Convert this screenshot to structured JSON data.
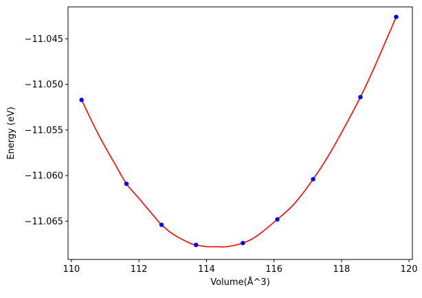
{
  "chart_data": {
    "type": "scatter",
    "xlabel": "Volume(Å^3)",
    "ylabel": "Energy (eV)",
    "xlim": [
      109.9,
      120.1
    ],
    "ylim": [
      -11.0692,
      -11.0415
    ],
    "x_ticks": [
      110,
      112,
      114,
      116,
      118,
      120
    ],
    "x_tick_labels": [
      "110",
      "112",
      "114",
      "116",
      "118",
      "120"
    ],
    "y_ticks": [
      -11.065,
      -11.06,
      -11.055,
      -11.05,
      -11.045
    ],
    "y_tick_labels": [
      "−11.065",
      "−11.060",
      "−11.055",
      "−11.050",
      "−11.045"
    ],
    "grid": false,
    "series": [
      {
        "kind": "points",
        "color": "#0000ff",
        "x": [
          110.3,
          111.63,
          112.67,
          113.69,
          115.08,
          116.1,
          117.16,
          118.56,
          119.62
        ],
        "y": [
          -11.0517,
          -11.0609,
          -11.0654,
          -11.0676,
          -11.0674,
          -11.0648,
          -11.0604,
          -11.0514,
          -11.0426
        ]
      },
      {
        "kind": "fit-curve",
        "color": "#ff0000",
        "x": [
          110.3,
          110.8,
          111.3,
          111.63,
          112.0,
          112.5,
          112.67,
          113.0,
          113.5,
          113.69,
          114.0,
          114.3,
          114.6,
          115.08,
          115.5,
          116.1,
          116.6,
          117.16,
          117.6,
          118.0,
          118.56,
          119.0,
          119.62
        ],
        "y": [
          -11.0517,
          -11.0555,
          -11.0588,
          -11.0609,
          -11.0625,
          -11.0647,
          -11.0654,
          -11.0664,
          -11.0674,
          -11.0676,
          -11.0678,
          -11.0678,
          -11.0678,
          -11.0674,
          -11.0666,
          -11.0648,
          -11.0631,
          -11.0604,
          -11.0579,
          -11.0553,
          -11.0514,
          -11.0479,
          -11.0426
        ]
      }
    ]
  }
}
